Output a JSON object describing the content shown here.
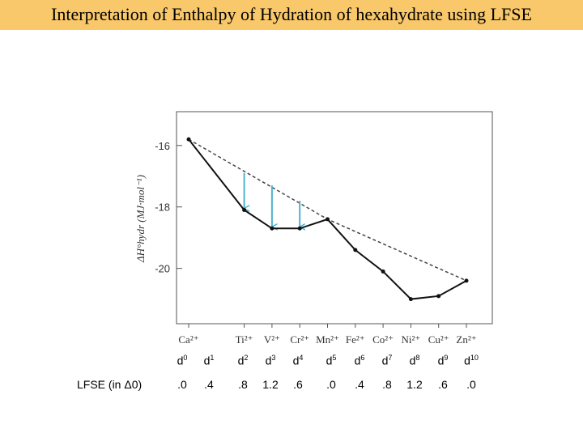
{
  "title": "Interpretation of Enthalpy of Hydration of hexahydrate using LFSE",
  "chart_data": {
    "type": "line",
    "ylabel": "ΔH°hydr (MJ·mol⁻¹)",
    "yticks": [
      "-16",
      "-18",
      "-20"
    ],
    "ylim": [
      -21.8,
      -14.9
    ],
    "categories": [
      "Ca²⁺",
      "Ti²⁺",
      "V²⁺",
      "Cr²⁺",
      "Mn²⁺",
      "Fe²⁺",
      "Co²⁺",
      "Ni²⁺",
      "Cu²⁺",
      "Zn²⁺"
    ],
    "cat_index": [
      0,
      2,
      3,
      4,
      5,
      6,
      7,
      8,
      9,
      10
    ],
    "series": [
      {
        "style": "solid",
        "values": [
          -15.8,
          -18.1,
          -18.7,
          -18.7,
          -18.4,
          -19.4,
          -20.1,
          -21.0,
          -20.9,
          -20.4
        ]
      },
      {
        "style": "dashed",
        "values": [
          -15.8,
          null,
          null,
          null,
          -18.4,
          null,
          null,
          null,
          null,
          -20.4
        ]
      }
    ],
    "arrows": [
      {
        "category": "Ti²⁺",
        "from": -16.9,
        "to": -18.1
      },
      {
        "category": "V²⁺",
        "from": -17.3,
        "to": -18.7
      },
      {
        "category": "Cr²⁺",
        "from": -17.8,
        "to": -18.7
      }
    ],
    "arrow_color": "#4fb3cf",
    "grid": false
  },
  "configs": [
    "d0",
    "d1",
    "d2",
    "d3",
    "d4",
    "d5",
    "d6",
    "d7",
    "d8",
    "d9",
    "d10"
  ],
  "lfse": {
    "label": "LFSE (in Δ0)",
    "values": [
      ".0",
      ".4",
      ".8",
      "1.2",
      ".6",
      ".0",
      ".4",
      ".8",
      "1.2",
      ".6",
      ".0"
    ]
  }
}
